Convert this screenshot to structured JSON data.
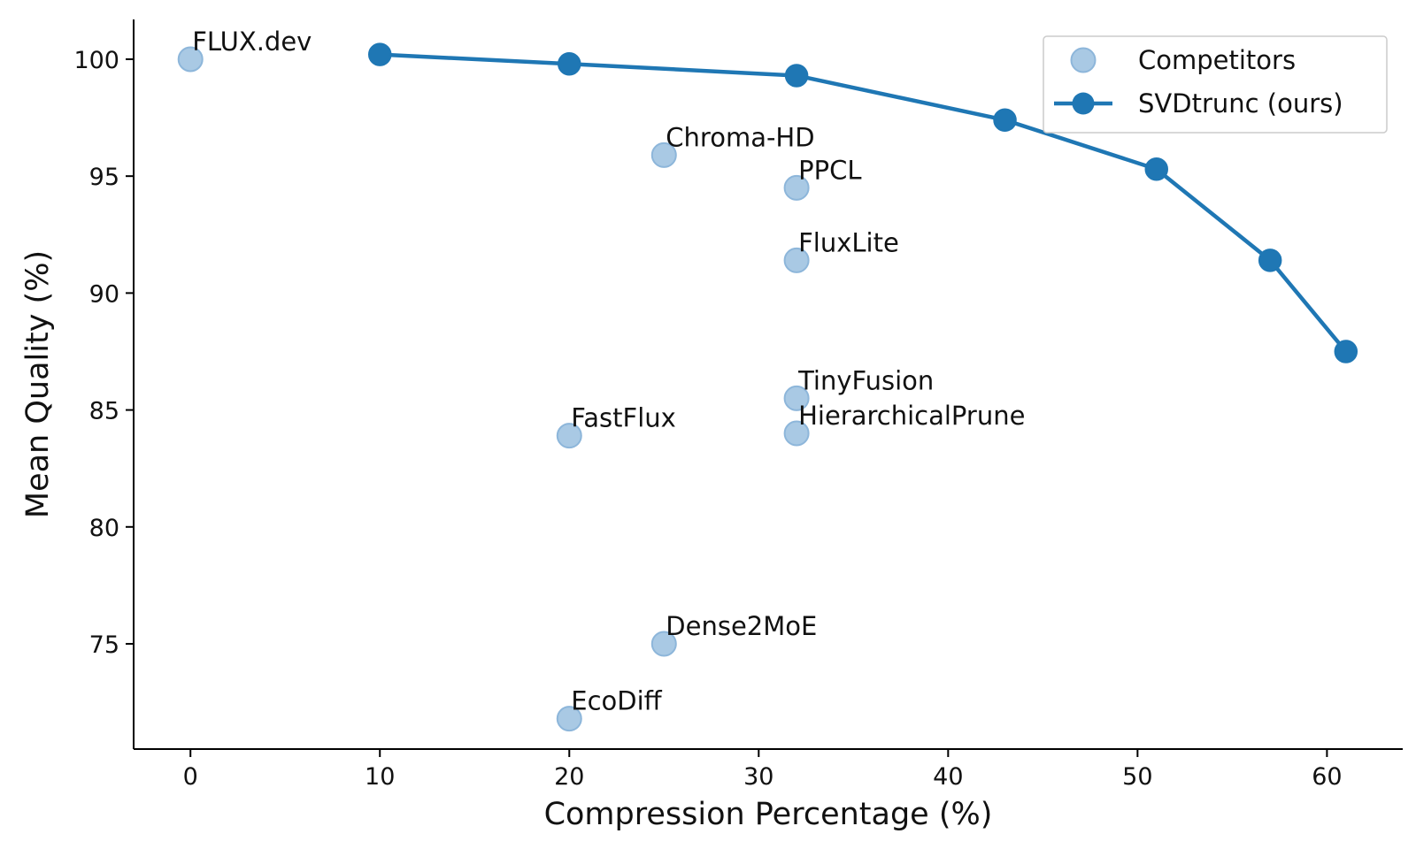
{
  "chart_data": {
    "type": "scatter",
    "xlabel": "Compression Percentage (%)",
    "ylabel": "Mean Quality (%)",
    "xlim": [
      -3,
      64
    ],
    "ylim": [
      70.5,
      101.7
    ],
    "xticks": [
      0,
      10,
      20,
      30,
      40,
      50,
      60
    ],
    "yticks": [
      75,
      80,
      85,
      90,
      95,
      100
    ],
    "grid": false,
    "legend_position": "top-right",
    "series": [
      {
        "name": "Competitors",
        "kind": "scatter",
        "color": "#a9c9e4",
        "edge_color": "#8db6da",
        "points": [
          {
            "label": "FLUX.dev",
            "x": 0,
            "y": 100.0
          },
          {
            "label": "Chroma-HD",
            "x": 25,
            "y": 95.9
          },
          {
            "label": "PPCL",
            "x": 32,
            "y": 94.5
          },
          {
            "label": "FluxLite",
            "x": 32,
            "y": 91.4
          },
          {
            "label": "TinyFusion",
            "x": 32,
            "y": 85.5
          },
          {
            "label": "HierarchicalPrune",
            "x": 32,
            "y": 84.0
          },
          {
            "label": "FastFlux",
            "x": 20,
            "y": 83.9
          },
          {
            "label": "Dense2MoE",
            "x": 25,
            "y": 75.0
          },
          {
            "label": "EcoDiff",
            "x": 20,
            "y": 71.8
          }
        ]
      },
      {
        "name": "SVDtrunc (ours)",
        "kind": "line",
        "color": "#1f77b4",
        "points": [
          {
            "x": 10,
            "y": 100.2
          },
          {
            "x": 20,
            "y": 99.8
          },
          {
            "x": 32,
            "y": 99.3
          },
          {
            "x": 43,
            "y": 97.4
          },
          {
            "x": 51,
            "y": 95.3
          },
          {
            "x": 57,
            "y": 91.4
          },
          {
            "x": 61,
            "y": 87.5
          }
        ]
      }
    ]
  }
}
